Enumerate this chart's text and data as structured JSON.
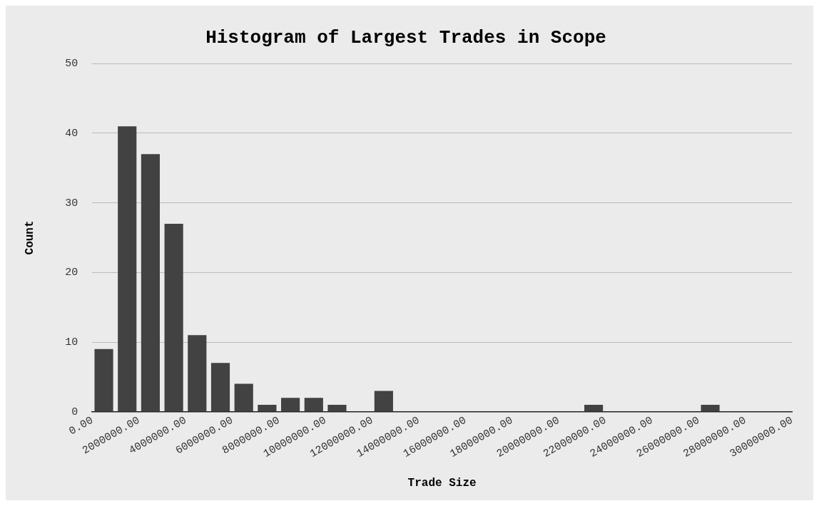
{
  "chart_data": {
    "type": "histogram",
    "title": "Histogram of Largest Trades in Scope",
    "xlabel": "Trade Size",
    "ylabel": "Count",
    "bins": [
      0,
      1000000,
      2000000,
      3000000,
      4000000,
      5000000,
      6000000,
      7000000,
      8000000,
      9000000,
      10000000,
      11000000,
      12000000,
      13000000,
      14000000,
      15000000,
      16000000,
      17000000,
      18000000,
      19000000,
      20000000,
      21000000,
      22000000,
      23000000,
      24000000,
      25000000,
      26000000,
      27000000,
      28000000,
      29000000,
      30000000
    ],
    "values": [
      9,
      41,
      37,
      27,
      11,
      7,
      4,
      1,
      2,
      2,
      1,
      0,
      3,
      0,
      0,
      0,
      0,
      0,
      0,
      0,
      0,
      1,
      0,
      0,
      0,
      0,
      1,
      0,
      0,
      0
    ],
    "color": "#424242",
    "xlim": [
      0,
      30000000
    ],
    "xticks": [
      {
        "value": 0,
        "label": "0.00"
      },
      {
        "value": 2000000,
        "label": "2000000.00"
      },
      {
        "value": 4000000,
        "label": "4000000.00"
      },
      {
        "value": 6000000,
        "label": "6000000.00"
      },
      {
        "value": 8000000,
        "label": "8000000.00"
      },
      {
        "value": 10000000,
        "label": "10000000.00"
      },
      {
        "value": 12000000,
        "label": "12000000.00"
      },
      {
        "value": 14000000,
        "label": "14000000.00"
      },
      {
        "value": 16000000,
        "label": "16000000.00"
      },
      {
        "value": 18000000,
        "label": "18000000.00"
      },
      {
        "value": 20000000,
        "label": "20000000.00"
      },
      {
        "value": 22000000,
        "label": "22000000.00"
      },
      {
        "value": 24000000,
        "label": "24000000.00"
      },
      {
        "value": 26000000,
        "label": "26000000.00"
      },
      {
        "value": 28000000,
        "label": "28000000.00"
      },
      {
        "value": 30000000,
        "label": "30000000.00"
      }
    ],
    "ylim": [
      0,
      50
    ],
    "yticks": [
      0,
      10,
      20,
      30,
      40,
      50
    ],
    "grid": "y",
    "legend": false
  }
}
